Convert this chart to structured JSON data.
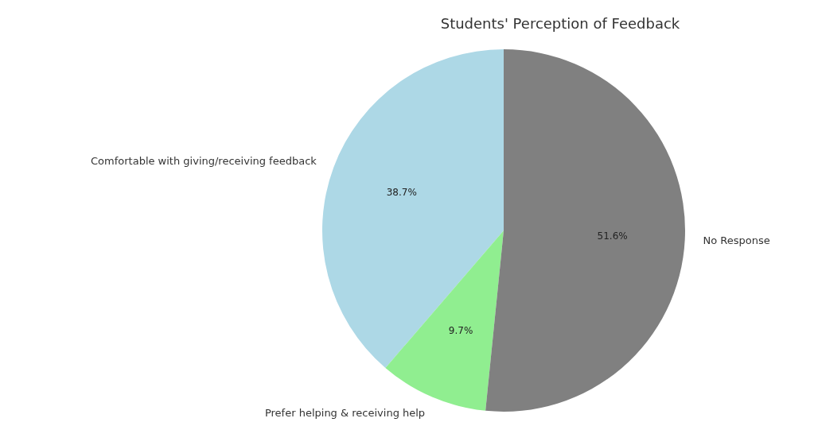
{
  "chart_data": {
    "type": "pie",
    "title": "Students' Perception of Feedback",
    "categories": [
      "Comfortable with giving/receiving feedback",
      "Prefer helping & receiving help",
      "No Response"
    ],
    "values": [
      38.7,
      9.7,
      51.6
    ],
    "colors": [
      "#add8e6",
      "#90ee90",
      "#808080"
    ],
    "value_labels": [
      "38.7%",
      "9.7%",
      "51.6%"
    ]
  }
}
